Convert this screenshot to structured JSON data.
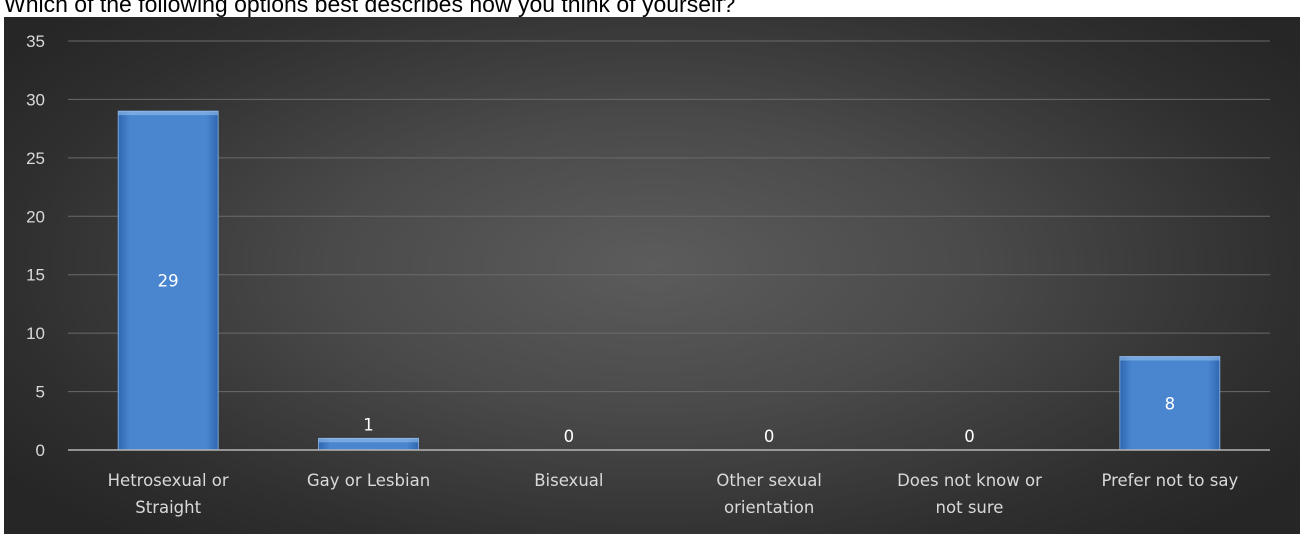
{
  "title": "Which of the following options best describes how you think of yourself?",
  "chart_data": {
    "type": "bar",
    "title": "Which of the following options best describes how you think of yourself?",
    "categories": [
      [
        "Hetrosexual or",
        "Straight"
      ],
      [
        "Gay or Lesbian"
      ],
      [
        "Bisexual"
      ],
      [
        "Other sexual",
        "orientation"
      ],
      [
        "Does not know or",
        "not sure"
      ],
      [
        "Prefer not to say"
      ]
    ],
    "values": [
      29,
      1,
      0,
      0,
      0,
      8
    ],
    "ylim": [
      0,
      35
    ],
    "yticks": [
      0,
      5,
      10,
      15,
      20,
      25,
      30,
      35
    ],
    "grid": true,
    "data_labels": true,
    "colors": {
      "bar": "#4a86d0",
      "bar_dark": "#2f67b0",
      "gridline": "#6a6a6a",
      "axis": "#b5b5b5",
      "text": "#d9d9d9"
    }
  }
}
